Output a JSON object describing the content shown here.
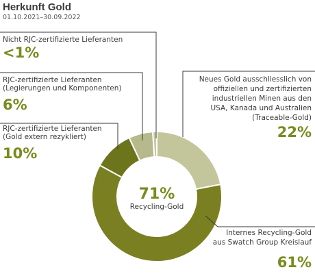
{
  "chart_data": {
    "type": "pie",
    "title": "Herkunft Gold",
    "subtitle": "01.10.2021–30.09.2022",
    "center_value": "71%",
    "center_label": "Recycling-Gold",
    "slices": [
      {
        "label": [
          "Neues Gold ausschliesslich von",
          "offiziellen und zertifizierten",
          "industriellen Minen aus den",
          "USA, Kanada und Australien",
          "(Traceable-Gold)"
        ],
        "value": 22,
        "display": "22%",
        "color": "#c3c69b"
      },
      {
        "label": [
          "Internes Recycling-Gold",
          "aus Swatch Group Kreislauf"
        ],
        "value": 61,
        "display": "61%",
        "color": "#7a7f21"
      },
      {
        "label": [
          "RJC-zertifizierte Lieferanten",
          "(Gold extern rezykliert)"
        ],
        "value": 10,
        "display": "10%",
        "color": "#6c741c"
      },
      {
        "label": [
          "RJC-zertifizierte Lieferanten",
          "(Legierungen und Komponenten)"
        ],
        "value": 6,
        "display": "6%",
        "color": "#b6b98b"
      },
      {
        "label": [
          "Nicht RJC-zertifizierte Lieferanten"
        ],
        "value": 1,
        "display": "<1%",
        "color": "#c8cba4"
      }
    ],
    "colors": {
      "text": "#3a3a3a",
      "accent": "#7a8a1e"
    }
  }
}
